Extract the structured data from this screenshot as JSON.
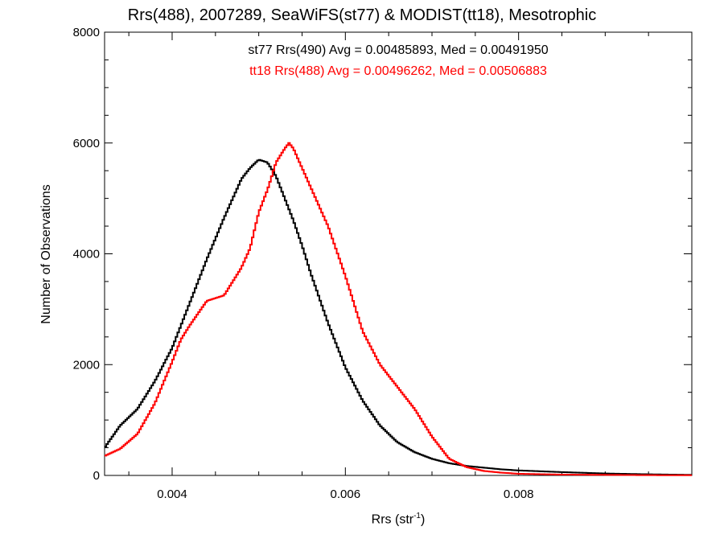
{
  "chart_data": {
    "type": "line",
    "title": "Rrs(488), 2007289, SeaWiFS(st77) & MODIST(tt18), Mesotrophic",
    "xlabel": {
      "base": "Rrs (str",
      "sup": "-1",
      "close": ")"
    },
    "ylabel": "Number of Observations",
    "xlim": [
      0.00322,
      0.01
    ],
    "ylim": [
      0,
      8000
    ],
    "x_ticks": [
      0.004,
      0.006,
      0.008
    ],
    "x_tick_labels": [
      "0.004",
      "0.006",
      "0.008"
    ],
    "y_ticks": [
      0,
      2000,
      4000,
      6000,
      8000
    ],
    "y_tick_labels": [
      "0",
      "2000",
      "4000",
      "6000",
      "8000"
    ],
    "grid": false,
    "annotations": [
      {
        "text": "st77 Rrs(490) Avg = 0.00485893, Med = 0.00491950",
        "color": "#000000"
      },
      {
        "text": "tt18 Rrs(488) Avg = 0.00496262, Med = 0.00506883",
        "color": "#ff0000"
      }
    ],
    "series": [
      {
        "color": "#000000",
        "x": [
          0.00322,
          0.0034,
          0.0036,
          0.0038,
          0.004,
          0.0042,
          0.0044,
          0.0046,
          0.0048,
          0.0049,
          0.005,
          0.0051,
          0.0052,
          0.0053,
          0.0054,
          0.0055,
          0.0056,
          0.0058,
          0.006,
          0.0062,
          0.0064,
          0.0066,
          0.0068,
          0.007,
          0.0072,
          0.0074,
          0.0076,
          0.0078,
          0.008,
          0.0085,
          0.009,
          0.0095,
          0.01
        ],
        "y": [
          500,
          900,
          1200,
          1700,
          2300,
          3100,
          3900,
          4650,
          5350,
          5550,
          5700,
          5650,
          5400,
          5000,
          4600,
          4150,
          3650,
          2750,
          1950,
          1350,
          900,
          600,
          420,
          300,
          220,
          170,
          140,
          110,
          90,
          60,
          35,
          20,
          10
        ]
      },
      {
        "color": "#ff0000",
        "x": [
          0.00322,
          0.0034,
          0.0036,
          0.0038,
          0.004,
          0.0041,
          0.0042,
          0.0044,
          0.0046,
          0.0048,
          0.0049,
          0.005,
          0.0051,
          0.0052,
          0.0053,
          0.00535,
          0.0054,
          0.0055,
          0.0056,
          0.0058,
          0.006,
          0.0062,
          0.0064,
          0.0066,
          0.0068,
          0.007,
          0.0072,
          0.0074,
          0.0076,
          0.0078,
          0.008,
          0.0085,
          0.009,
          0.0095,
          0.01
        ],
        "y": [
          350,
          480,
          750,
          1300,
          2050,
          2450,
          2700,
          3150,
          3250,
          3750,
          4100,
          4750,
          5150,
          5650,
          5900,
          6000,
          5900,
          5550,
          5200,
          4500,
          3600,
          2600,
          2000,
          1600,
          1200,
          700,
          300,
          150,
          80,
          50,
          30,
          15,
          10,
          5,
          3
        ]
      }
    ]
  }
}
